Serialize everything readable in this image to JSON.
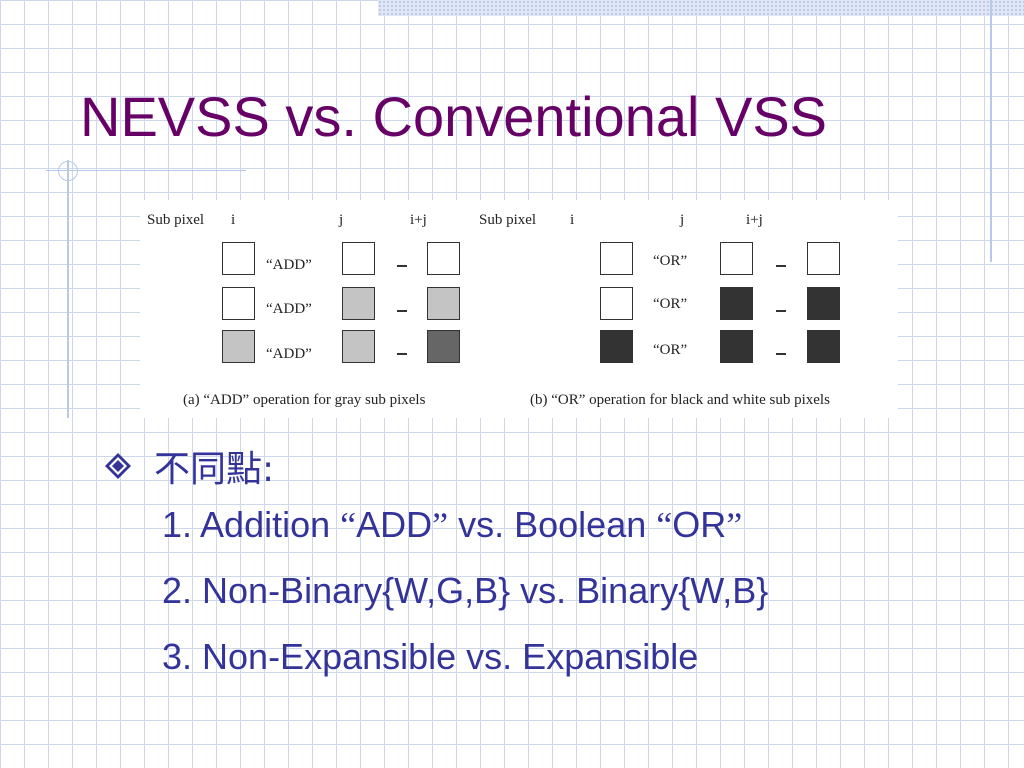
{
  "slide": {
    "title": "NEVSS vs. Conventional VSS"
  },
  "figure": {
    "panel_a": {
      "header": {
        "sub_pixel": "Sub pixel",
        "i": "i",
        "j": "j",
        "ij": "i+j"
      },
      "rows": [
        {
          "i": "white",
          "op": "“ADD”",
          "j": "white",
          "sep": "–",
          "result": "white"
        },
        {
          "i": "white",
          "op": "“ADD”",
          "j": "gray",
          "sep": "–",
          "result": "gray"
        },
        {
          "i": "gray",
          "op": "“ADD”",
          "j": "gray",
          "sep": "–",
          "result": "darkgray"
        }
      ],
      "caption": "(a) “ADD” operation for gray sub pixels"
    },
    "panel_b": {
      "header": {
        "sub_pixel": "Sub  pixel",
        "i": "i",
        "j": "j",
        "ij": "i+j"
      },
      "rows": [
        {
          "i": "white",
          "op": "“OR”",
          "j": "white",
          "sep": "–",
          "result": "white"
        },
        {
          "i": "white",
          "op": "“OR”",
          "j": "black",
          "sep": "–",
          "result": "black"
        },
        {
          "i": "black",
          "op": "“OR”",
          "j": "black",
          "sep": "–",
          "result": "black"
        }
      ],
      "caption": "(b) “OR” operation for black and white sub pixels"
    },
    "colors": {
      "white": "#ffffff",
      "gray": "#c4c4c4",
      "darkgray": "#666666",
      "black": "#333333"
    }
  },
  "content": {
    "bullet_icon": "diamond-bullet-icon",
    "bullet": "不同點:",
    "items": [
      {
        "prefix": "1. Addition ",
        "q1": "“",
        "w1": "ADD",
        "q2": "”",
        "mid": " vs. Boolean ",
        "q3": "“",
        "w2": "OR",
        "q4": "”"
      },
      {
        "text": "2. Non-Binary{W,G,B} vs. Binary{W,B}"
      },
      {
        "text": "3. Non-Expansible vs. Expansible"
      }
    ]
  },
  "theme": {
    "title_color": "#660066",
    "text_color": "#333399",
    "grid_color": "#cfd8ea",
    "accent_line_color": "#b8c8e6"
  }
}
